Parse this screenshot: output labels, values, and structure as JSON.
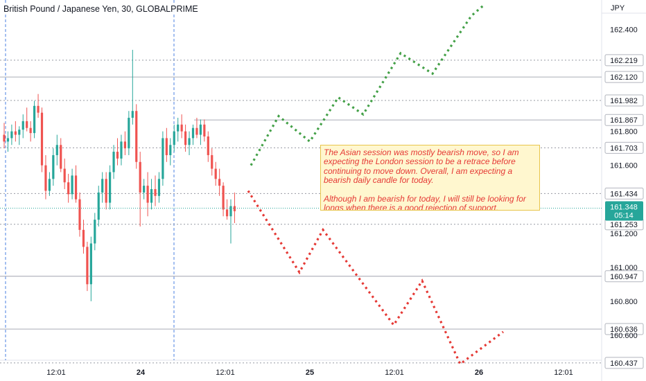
{
  "header": {
    "title": "British Pound / Japanese Yen, 30, GLOBALPRIME",
    "currency": "JPY"
  },
  "annotation": {
    "line1": "The Asian session was mostly bearish move, so I am expecting the London session to be a retrace before continuing to move down. Overall, I am expecting a bearish daily candle for today.",
    "line2": "Although I am bearish for today, I will still be looking for longs when there is a good rejection of support."
  },
  "chart_data": {
    "type": "candlestick",
    "symbol": "British Pound / Japanese Yen",
    "interval": "30",
    "source": "GLOBALPRIME",
    "currency": "JPY",
    "ylim": [
      160.42,
      162.5
    ],
    "price_axis_ticks": [
      162.4,
      161.8,
      161.6,
      161.2,
      161.0,
      160.8,
      160.6
    ],
    "time_axis_ticks": [
      "12:01",
      "24",
      "12:01",
      "25",
      "12:01",
      "26",
      "12:01"
    ],
    "current_price": {
      "value": "161.348",
      "countdown": "05:14",
      "color": "#26a69a"
    },
    "horizontal_levels": [
      {
        "value": "162.219",
        "style": "dotted"
      },
      {
        "value": "162.120",
        "style": "solid"
      },
      {
        "value": "161.982",
        "style": "dotted"
      },
      {
        "value": "161.867",
        "style": "solid"
      },
      {
        "value": "161.703",
        "style": "dotted"
      },
      {
        "value": "161.434",
        "style": "dotted"
      },
      {
        "value": "161.253",
        "style": "dotted"
      },
      {
        "value": "160.947",
        "style": "solid"
      },
      {
        "value": "160.636",
        "style": "solid"
      },
      {
        "value": "160.437",
        "style": "dotted"
      }
    ],
    "session_separators": [
      "day-23-start",
      "day-24-start"
    ],
    "candles": [
      [
        161.78,
        161.85,
        161.7,
        161.74
      ],
      [
        161.74,
        161.8,
        161.68,
        161.76
      ],
      [
        161.76,
        161.84,
        161.72,
        161.8
      ],
      [
        161.8,
        161.86,
        161.74,
        161.78
      ],
      [
        161.78,
        161.83,
        161.72,
        161.81
      ],
      [
        161.81,
        161.9,
        161.76,
        161.86
      ],
      [
        161.86,
        161.94,
        161.8,
        161.82
      ],
      [
        161.82,
        161.86,
        161.74,
        161.79
      ],
      [
        161.79,
        161.98,
        161.76,
        161.95
      ],
      [
        161.95,
        162.02,
        161.88,
        161.91
      ],
      [
        161.91,
        161.94,
        161.56,
        161.6
      ],
      [
        161.6,
        161.66,
        161.4,
        161.45
      ],
      [
        161.45,
        161.56,
        161.42,
        161.52
      ],
      [
        161.52,
        161.7,
        161.48,
        161.66
      ],
      [
        161.66,
        161.78,
        161.6,
        161.72
      ],
      [
        161.72,
        161.76,
        161.56,
        161.58
      ],
      [
        161.58,
        161.64,
        161.46,
        161.5
      ],
      [
        161.5,
        161.55,
        161.38,
        161.43
      ],
      [
        161.43,
        161.58,
        161.4,
        161.54
      ],
      [
        161.54,
        161.6,
        161.38,
        161.4
      ],
      [
        161.4,
        161.44,
        161.18,
        161.22
      ],
      [
        161.22,
        161.28,
        161.08,
        161.12
      ],
      [
        161.12,
        161.15,
        160.86,
        160.9
      ],
      [
        160.9,
        161.18,
        160.8,
        161.14
      ],
      [
        161.14,
        161.32,
        161.1,
        161.28
      ],
      [
        161.28,
        161.48,
        161.24,
        161.44
      ],
      [
        161.44,
        161.56,
        161.38,
        161.52
      ],
      [
        161.52,
        161.56,
        161.34,
        161.38
      ],
      [
        161.38,
        161.6,
        161.34,
        161.56
      ],
      [
        161.56,
        161.72,
        161.52,
        161.68
      ],
      [
        161.68,
        161.76,
        161.6,
        161.64
      ],
      [
        161.64,
        161.78,
        161.6,
        161.74
      ],
      [
        161.74,
        161.8,
        161.66,
        161.7
      ],
      [
        161.7,
        161.92,
        161.66,
        161.88
      ],
      [
        161.88,
        162.28,
        161.84,
        161.92
      ],
      [
        161.92,
        161.96,
        161.58,
        161.62
      ],
      [
        161.62,
        161.68,
        161.24,
        161.44
      ],
      [
        161.44,
        161.52,
        161.4,
        161.48
      ],
      [
        161.48,
        161.56,
        161.3,
        161.38
      ],
      [
        161.38,
        161.52,
        161.34,
        161.46
      ],
      [
        161.46,
        161.54,
        161.36,
        161.42
      ],
      [
        161.42,
        161.56,
        161.38,
        161.52
      ],
      [
        161.52,
        161.8,
        161.48,
        161.76
      ],
      [
        161.76,
        161.82,
        161.62,
        161.66
      ],
      [
        161.66,
        161.76,
        161.6,
        161.72
      ],
      [
        161.72,
        161.84,
        161.68,
        161.8
      ],
      [
        161.8,
        161.88,
        161.74,
        161.84
      ],
      [
        161.84,
        161.9,
        161.76,
        161.8
      ],
      [
        161.8,
        161.84,
        161.68,
        161.72
      ],
      [
        161.72,
        161.8,
        161.66,
        161.76
      ],
      [
        161.76,
        161.84,
        161.72,
        161.82
      ],
      [
        161.82,
        161.88,
        161.76,
        161.78
      ],
      [
        161.78,
        161.87,
        161.72,
        161.84
      ],
      [
        161.84,
        161.87,
        161.74,
        161.77
      ],
      [
        161.77,
        161.8,
        161.62,
        161.66
      ],
      [
        161.66,
        161.7,
        161.54,
        161.58
      ],
      [
        161.58,
        161.62,
        161.48,
        161.52
      ],
      [
        161.52,
        161.58,
        161.42,
        161.48
      ],
      [
        161.48,
        161.5,
        161.3,
        161.34
      ],
      [
        161.34,
        161.4,
        161.28,
        161.3
      ],
      [
        161.3,
        161.4,
        161.14,
        161.36
      ],
      [
        161.36,
        161.44,
        161.26,
        161.33
      ]
    ],
    "projections": [
      {
        "name": "bullish-scenario",
        "color": "#43a047",
        "x": [
          0,
          1,
          2,
          3,
          4,
          5,
          6,
          7,
          8
        ],
        "y": [
          161.6,
          161.89,
          161.74,
          162.0,
          161.9,
          162.26,
          162.14,
          162.48,
          162.55
        ]
      },
      {
        "name": "bearish-scenario",
        "color": "#e53935",
        "x": [
          0,
          1,
          2,
          3,
          4,
          5,
          6,
          7
        ],
        "y": [
          161.45,
          160.97,
          161.22,
          160.66,
          160.92,
          160.43,
          160.62,
          160.5
        ]
      }
    ]
  }
}
